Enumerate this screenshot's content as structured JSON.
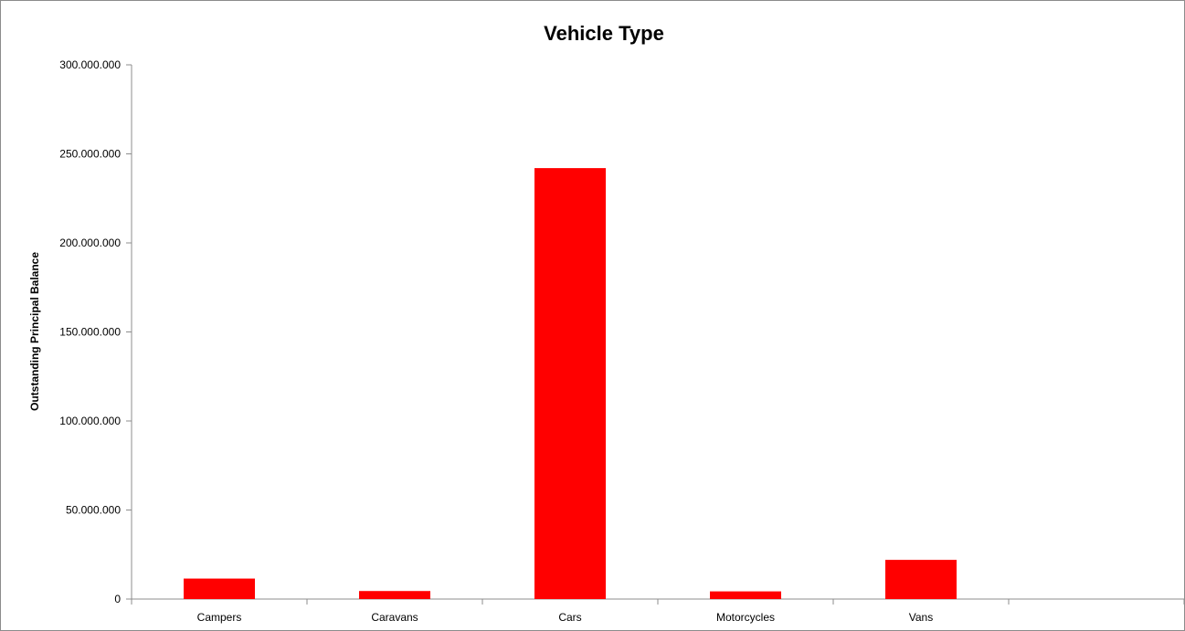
{
  "chart_data": {
    "type": "bar",
    "title": "Vehicle Type",
    "xlabel": "",
    "ylabel": "Outstanding Principal Balance",
    "categories": [
      "Campers",
      "Caravans",
      "Cars",
      "Motorcycles",
      "Vans"
    ],
    "values": [
      11500000,
      4500000,
      242000000,
      4300000,
      22000000
    ],
    "ylim": [
      0,
      300000000
    ],
    "y_ticks": [
      0,
      50000000,
      100000000,
      150000000,
      200000000,
      250000000,
      300000000
    ],
    "y_tick_labels": [
      "0",
      "50.000.000",
      "100.000.000",
      "150.000.000",
      "200.000.000",
      "250.000.000",
      "300.000.000"
    ],
    "grid": false,
    "legend": "none",
    "bar_color": "#ff0000",
    "axis_color": "#8c8c8c"
  }
}
